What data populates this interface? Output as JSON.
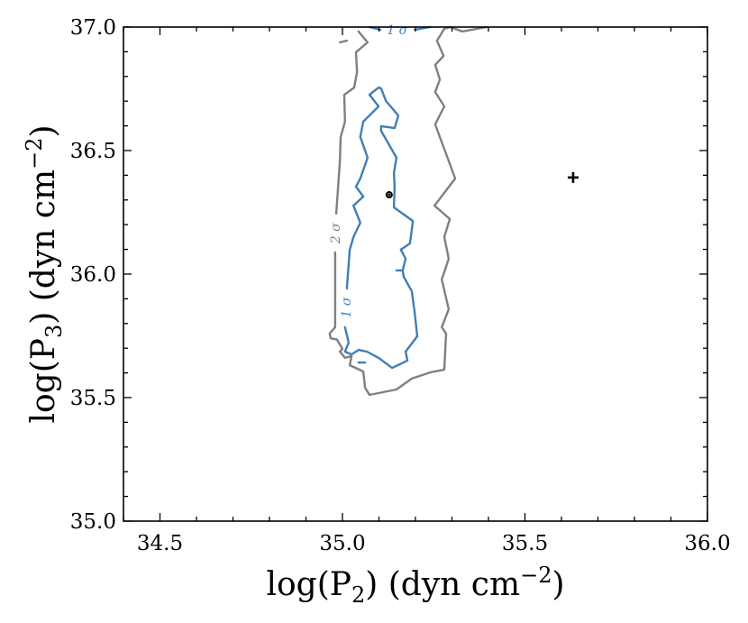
{
  "chart_data": {
    "type": "contour",
    "title": "",
    "xlabel": "log(P",
    "xlabel_sub": "2",
    "xlabel_unit": ") (dyn cm",
    "xlabel_sup": "−2",
    "xlabel_end": ")",
    "ylabel": "log(P",
    "ylabel_sub": "3",
    "ylabel_unit": ") (dyn cm",
    "ylabel_sup": "−2",
    "ylabel_end": ")",
    "xlim": [
      34.4,
      36.0
    ],
    "ylim": [
      35.0,
      37.0
    ],
    "xticks": [
      "34.5",
      "35.0",
      "35.5",
      "36.0"
    ],
    "yticks": [
      "35.0",
      "35.5",
      "36.0",
      "36.5",
      "37.0"
    ],
    "minor_tick_step": 0.1,
    "grid": false,
    "colors": {
      "one_sigma": "#3f7fb6",
      "two_sigma": "#808080",
      "marker": "#000000"
    },
    "contours": [
      {
        "level": "2 σ",
        "color": "#808080",
        "segments": [
          [
            [
              35.044,
              36.982
            ],
            [
              35.069,
              36.938
            ],
            [
              35.037,
              36.898
            ],
            [
              35.04,
              36.818
            ],
            [
              35.032,
              36.755
            ],
            [
              35.005,
              36.726
            ],
            [
              35.007,
              36.617
            ],
            [
              34.995,
              36.555
            ],
            [
              34.993,
              36.46
            ],
            [
              34.983,
              36.245
            ]
          ],
          [
            [
              34.98,
              36.088
            ],
            [
              34.98,
              35.807
            ],
            [
              34.98,
              35.785
            ],
            [
              34.965,
              35.76
            ],
            [
              34.968,
              35.74
            ],
            [
              34.985,
              35.735
            ],
            [
              35.0,
              35.697
            ],
            [
              34.993,
              35.686
            ],
            [
              35.007,
              35.661
            ],
            [
              35.025,
              35.668
            ],
            [
              35.02,
              35.631
            ],
            [
              35.057,
              35.606
            ],
            [
              35.062,
              35.54
            ],
            [
              35.074,
              35.511
            ],
            [
              35.148,
              35.533
            ],
            [
              35.19,
              35.577
            ],
            [
              35.24,
              35.602
            ],
            [
              35.279,
              35.613
            ],
            [
              35.284,
              35.759
            ],
            [
              35.272,
              35.785
            ],
            [
              35.291,
              35.858
            ],
            [
              35.272,
              35.978
            ],
            [
              35.291,
              36.062
            ],
            [
              35.279,
              36.15
            ],
            [
              35.294,
              36.223
            ],
            [
              35.252,
              36.277
            ],
            [
              35.309,
              36.387
            ],
            [
              35.254,
              36.606
            ],
            [
              35.279,
              36.679
            ],
            [
              35.254,
              36.737
            ],
            [
              35.267,
              36.788
            ],
            [
              35.254,
              36.847
            ],
            [
              35.277,
              36.883
            ],
            [
              35.259,
              36.945
            ],
            [
              35.279,
              36.993
            ],
            [
              35.296,
              37.0
            ],
            [
              35.328,
              36.982
            ],
            [
              35.395,
              37.0
            ]
          ],
          [
            [
              34.993,
              36.938
            ],
            [
              35.012,
              36.945
            ]
          ]
        ]
      },
      {
        "level": "1 σ",
        "color": "#3f7fb6",
        "segments": [
          [
            [
              35.074,
              37.0
            ],
            [
              35.104,
              36.989
            ]
          ],
          [
            [
              35.198,
              36.989
            ],
            [
              35.24,
              37.0
            ]
          ],
          [
            [
              35.007,
              35.785
            ],
            [
              35.017,
              35.723
            ],
            [
              35.007,
              35.686
            ],
            [
              35.025,
              35.675
            ],
            [
              35.044,
              35.693
            ],
            [
              35.067,
              35.686
            ],
            [
              35.099,
              35.661
            ],
            [
              35.136,
              35.62
            ],
            [
              35.178,
              35.65
            ],
            [
              35.173,
              35.686
            ],
            [
              35.205,
              35.748
            ],
            [
              35.198,
              35.843
            ],
            [
              35.19,
              35.931
            ],
            [
              35.168,
              35.989
            ],
            [
              35.165,
              36.015
            ],
            [
              35.173,
              36.062
            ],
            [
              35.16,
              36.099
            ],
            [
              35.185,
              36.124
            ],
            [
              35.193,
              36.215
            ],
            [
              35.141,
              36.27
            ],
            [
              35.143,
              36.354
            ],
            [
              35.141,
              36.409
            ],
            [
              35.148,
              36.471
            ],
            [
              35.106,
              36.58
            ],
            [
              35.106,
              36.599
            ],
            [
              35.143,
              36.591
            ],
            [
              35.153,
              36.642
            ],
            [
              35.119,
              36.701
            ],
            [
              35.106,
              36.752
            ],
            [
              35.099,
              36.755
            ],
            [
              35.074,
              36.726
            ],
            [
              35.099,
              36.679
            ],
            [
              35.057,
              36.617
            ],
            [
              35.049,
              36.555
            ],
            [
              35.069,
              36.471
            ],
            [
              35.049,
              36.387
            ],
            [
              35.037,
              36.354
            ],
            [
              35.057,
              36.314
            ],
            [
              35.03,
              36.277
            ],
            [
              35.049,
              36.208
            ],
            [
              35.03,
              36.15
            ],
            [
              35.02,
              36.099
            ],
            [
              35.012,
              35.942
            ]
          ],
          [
            [
              35.148,
              36.015
            ],
            [
              35.165,
              36.015
            ]
          ],
          [
            [
              35.044,
              35.642
            ],
            [
              35.062,
              35.642
            ]
          ]
        ]
      }
    ],
    "contour_labels": [
      {
        "text": "1 σ",
        "color": "#3f7fb6",
        "x": 35.15,
        "y": 36.985,
        "rotate": 0
      },
      {
        "text": "2 σ",
        "color": "#808080",
        "x": 34.983,
        "y": 36.165,
        "rotate": -90
      },
      {
        "text": "1 σ",
        "color": "#3f7fb6",
        "x": 35.012,
        "y": 35.865,
        "rotate": -90
      }
    ],
    "points": [
      {
        "marker": "circled-dot",
        "x": 35.128,
        "y": 36.321
      },
      {
        "marker": "plus",
        "x": 35.632,
        "y": 36.391
      }
    ]
  }
}
